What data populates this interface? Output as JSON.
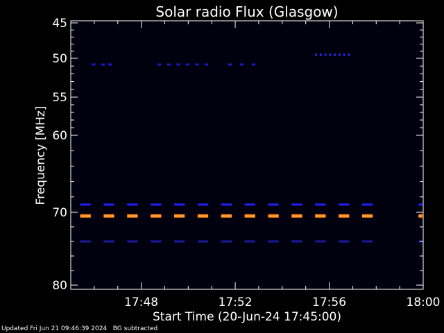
{
  "chart_data": {
    "type": "heatmap",
    "title": "Solar radio Flux (Glasgow)",
    "xlabel": "Start Time (20-Jun-24 17:45:00)",
    "ylabel": "Frequency [MHz]",
    "x_ticks": [
      "17:48",
      "17:52",
      "17:56",
      "18:00"
    ],
    "x_tick_minutes": [
      3,
      7,
      11,
      15
    ],
    "xlim_minutes": [
      0,
      15
    ],
    "y_ticks": [
      45,
      50,
      55,
      60,
      70,
      80
    ],
    "ylim": [
      45,
      80
    ],
    "grid": false,
    "background_color": "#00000f",
    "bands": [
      {
        "freq": 69,
        "color": "#2020ff",
        "segments_start_minutes": [
          0.4,
          1.4,
          2.4,
          3.4,
          4.4,
          5.4,
          6.4,
          7.4,
          8.4,
          9.4,
          10.4,
          11.4,
          12.4,
          14.8
        ],
        "segment_length": 0.45
      },
      {
        "freq": 70.5,
        "color": "#ff7a00",
        "segments_start_minutes": [
          0.4,
          1.4,
          2.4,
          3.4,
          4.4,
          5.4,
          6.4,
          7.4,
          8.4,
          9.4,
          10.4,
          11.4,
          12.4,
          14.8
        ],
        "segment_length": 0.45
      },
      {
        "freq": 74,
        "color": "#1a1aa0",
        "segments_start_minutes": [
          0.4,
          1.4,
          2.4,
          3.4,
          4.4,
          5.4,
          6.4,
          7.4,
          8.4,
          9.4,
          10.4,
          11.4,
          12.4,
          14.8
        ],
        "segment_length": 0.45
      },
      {
        "freq": 50.8,
        "color": "#1a1ad0",
        "segments_start_minutes": [
          0.9,
          1.3,
          1.6,
          3.7,
          4.1,
          4.5,
          4.9,
          5.3,
          5.7,
          6.7,
          7.2,
          7.7
        ],
        "segment_length": 0.15
      },
      {
        "freq": 49.5,
        "color": "#2a2aff",
        "segments_start_minutes": [
          10.4,
          10.6,
          10.8,
          11.0,
          11.2,
          11.4,
          11.6,
          11.8
        ],
        "segment_length": 0.08
      }
    ]
  },
  "footer": {
    "updated": "Updated Fri Jun 21 09:46:39 2024",
    "note": "BG subtracted"
  }
}
